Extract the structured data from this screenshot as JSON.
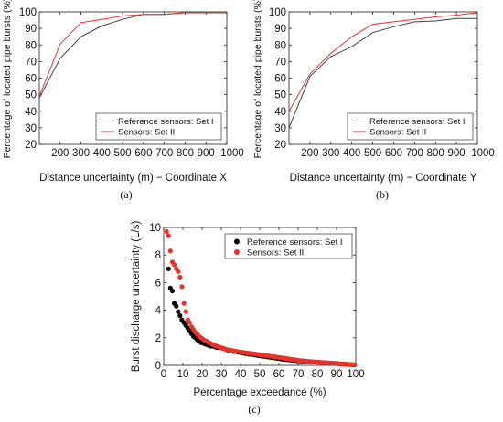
{
  "chart_data": [
    {
      "type": "line",
      "panel_label": "(a)",
      "xlabel": "Distance uncertainty (m) − Coordinate X",
      "ylabel": "Percentage of located pipe bursts (%)",
      "xlim": [
        100,
        1000
      ],
      "ylim": [
        20,
        100
      ],
      "x_ticks": [
        200,
        300,
        400,
        500,
        600,
        700,
        800,
        900,
        1000
      ],
      "x_tick_labels": [
        "200",
        "300",
        "400",
        "500",
        "600",
        "700",
        "800",
        "900",
        "1000"
      ],
      "y_ticks": [
        20,
        30,
        40,
        50,
        60,
        70,
        80,
        90,
        100
      ],
      "y_tick_labels": [
        "20",
        "30",
        "40",
        "50",
        "60",
        "70",
        "80",
        "90",
        "100"
      ],
      "legend_position": "bottom-right",
      "x": [
        100,
        200,
        300,
        400,
        500,
        600,
        700,
        800,
        900,
        1000
      ],
      "series": [
        {
          "name": "Reference sensors: Set I",
          "color": "#404040",
          "values": [
            48,
            72,
            85,
            91.5,
            95.5,
            98.5,
            98.5,
            99.5,
            99.5,
            99.5
          ]
        },
        {
          "name": "Sensors: Set II",
          "color": "#e8312a",
          "values": [
            49,
            80.5,
            93.5,
            95.5,
            97.5,
            98.5,
            98.5,
            99.5,
            99.5,
            100
          ]
        }
      ]
    },
    {
      "type": "line",
      "panel_label": "(b)",
      "xlabel": "Distance uncertainty (m) − Coordinate Y",
      "ylabel": "Percentage of located pipe bursts (%)",
      "xlim": [
        100,
        1000
      ],
      "ylim": [
        20,
        100
      ],
      "x_ticks": [
        200,
        300,
        400,
        500,
        600,
        700,
        800,
        900,
        1000
      ],
      "x_tick_labels": [
        "200",
        "300",
        "400",
        "500",
        "600",
        "700",
        "800",
        "900",
        "1000"
      ],
      "y_ticks": [
        20,
        30,
        40,
        50,
        60,
        70,
        80,
        90,
        100
      ],
      "y_tick_labels": [
        "20",
        "30",
        "40",
        "50",
        "60",
        "70",
        "80",
        "90",
        "100"
      ],
      "legend_position": "bottom-right",
      "x": [
        100,
        200,
        300,
        400,
        500,
        600,
        700,
        800,
        900,
        1000
      ],
      "series": [
        {
          "name": "Reference sensors: Set I",
          "color": "#404040",
          "values": [
            30,
            61,
            73,
            79,
            87.5,
            91,
            94,
            94.5,
            96,
            96
          ]
        },
        {
          "name": "Sensors: Set II",
          "color": "#e8312a",
          "values": [
            40,
            62.5,
            75,
            85,
            92.5,
            94,
            95.5,
            97,
            98,
            99.5
          ]
        }
      ]
    },
    {
      "type": "scatter",
      "panel_label": "(c)",
      "xlabel": "Percentage exceedance (%)",
      "ylabel": "Burst discharge uncertainty (L/s)",
      "xlim": [
        0,
        100
      ],
      "ylim": [
        0,
        10
      ],
      "x_ticks": [
        0,
        10,
        20,
        30,
        40,
        50,
        60,
        70,
        80,
        90,
        100
      ],
      "x_tick_labels": [
        "0",
        "10",
        "20",
        "30",
        "40",
        "50",
        "60",
        "70",
        "80",
        "90",
        "100"
      ],
      "y_ticks": [
        0,
        2,
        4,
        6,
        8,
        10
      ],
      "y_tick_labels": [
        "0",
        "2",
        "4",
        "6",
        "8",
        "10"
      ],
      "legend_position": "top-right",
      "series": [
        {
          "name": "Reference sensors: Set I",
          "color": "#000000",
          "points": [
            [
              2.5,
              7.0
            ],
            [
              3.5,
              5.6
            ],
            [
              4.5,
              5.4
            ],
            [
              5.5,
              4.5
            ],
            [
              6.5,
              4.3
            ],
            [
              7.5,
              3.9
            ],
            [
              8.5,
              3.6
            ],
            [
              9.5,
              3.3
            ],
            [
              10.5,
              3.1
            ],
            [
              11.5,
              2.9
            ],
            [
              12.5,
              2.7
            ],
            [
              13.5,
              2.5
            ],
            [
              14.5,
              2.3
            ],
            [
              15.5,
              2.1
            ],
            [
              16.5,
              2.0
            ],
            [
              17.5,
              1.85
            ],
            [
              18.5,
              1.75
            ],
            [
              19.5,
              1.65
            ],
            [
              20.5,
              1.6
            ],
            [
              21.5,
              1.55
            ],
            [
              22.5,
              1.5
            ],
            [
              23.5,
              1.45
            ],
            [
              24.5,
              1.4
            ],
            [
              25.5,
              1.4
            ],
            [
              26.5,
              1.35
            ],
            [
              27.5,
              1.3
            ],
            [
              28.5,
              1.3
            ],
            [
              29.5,
              1.3
            ],
            [
              30.5,
              1.25
            ],
            [
              31.5,
              1.2
            ],
            [
              32.5,
              1.15
            ],
            [
              33.5,
              1.1
            ],
            [
              34.5,
              1.05
            ],
            [
              35.5,
              1.05
            ],
            [
              36.5,
              1.0
            ],
            [
              37.5,
              1.0
            ],
            [
              38.5,
              0.95
            ],
            [
              39.5,
              0.95
            ],
            [
              40.5,
              0.9
            ],
            [
              41.5,
              0.9
            ],
            [
              42.5,
              0.85
            ],
            [
              43.5,
              0.85
            ],
            [
              44.5,
              0.8
            ],
            [
              45.5,
              0.8
            ],
            [
              46.5,
              0.78
            ],
            [
              47.5,
              0.75
            ],
            [
              48.5,
              0.73
            ],
            [
              49.5,
              0.7
            ],
            [
              50.5,
              0.68
            ],
            [
              51.5,
              0.66
            ],
            [
              52.5,
              0.64
            ],
            [
              53.5,
              0.62
            ],
            [
              54.5,
              0.6
            ],
            [
              55.5,
              0.58
            ],
            [
              56.5,
              0.56
            ],
            [
              57.5,
              0.54
            ],
            [
              58.5,
              0.52
            ],
            [
              59.5,
              0.5
            ],
            [
              60.5,
              0.48
            ],
            [
              61.5,
              0.46
            ],
            [
              62.5,
              0.44
            ],
            [
              63.5,
              0.42
            ],
            [
              64.5,
              0.41
            ],
            [
              65.5,
              0.4
            ],
            [
              66.5,
              0.38
            ],
            [
              67.5,
              0.37
            ],
            [
              68.5,
              0.35
            ],
            [
              69.5,
              0.34
            ],
            [
              70.5,
              0.33
            ],
            [
              71.5,
              0.31
            ],
            [
              72.5,
              0.3
            ],
            [
              73.5,
              0.29
            ],
            [
              74.5,
              0.28
            ],
            [
              75.5,
              0.27
            ],
            [
              76.5,
              0.26
            ],
            [
              77.5,
              0.25
            ],
            [
              78.5,
              0.24
            ],
            [
              79.5,
              0.23
            ],
            [
              80.5,
              0.22
            ],
            [
              81.5,
              0.21
            ],
            [
              82.5,
              0.2
            ],
            [
              83.5,
              0.19
            ],
            [
              84.5,
              0.18
            ],
            [
              85.5,
              0.17
            ],
            [
              86.5,
              0.16
            ],
            [
              87.5,
              0.15
            ],
            [
              88.5,
              0.14
            ],
            [
              89.5,
              0.13
            ],
            [
              90.5,
              0.12
            ],
            [
              91.5,
              0.11
            ],
            [
              92.5,
              0.1
            ],
            [
              93.5,
              0.09
            ],
            [
              94.5,
              0.08
            ],
            [
              95.5,
              0.07
            ],
            [
              96.5,
              0.06
            ],
            [
              97.5,
              0.05
            ],
            [
              98.5,
              0.04
            ],
            [
              99.5,
              0.03
            ]
          ]
        },
        {
          "name": "Sensors: Set II",
          "color": "#e8312a",
          "points": [
            [
              1.5,
              9.7
            ],
            [
              2.5,
              9.4
            ],
            [
              3.5,
              8.3
            ],
            [
              4.5,
              7.5
            ],
            [
              5.5,
              7.3
            ],
            [
              6.5,
              7.0
            ],
            [
              7.5,
              6.8
            ],
            [
              8.5,
              6.4
            ],
            [
              9.5,
              5.7
            ],
            [
              10.5,
              4.5
            ],
            [
              11.5,
              3.9
            ],
            [
              12.5,
              3.3
            ],
            [
              13.5,
              3.1
            ],
            [
              14.5,
              2.8
            ],
            [
              15.5,
              2.6
            ],
            [
              16.5,
              2.4
            ],
            [
              17.5,
              2.25
            ],
            [
              18.5,
              2.1
            ],
            [
              19.5,
              2.0
            ],
            [
              20.5,
              1.9
            ],
            [
              21.5,
              1.8
            ],
            [
              22.5,
              1.75
            ],
            [
              23.5,
              1.65
            ],
            [
              24.5,
              1.6
            ],
            [
              25.5,
              1.5
            ],
            [
              26.5,
              1.45
            ],
            [
              27.5,
              1.4
            ],
            [
              28.5,
              1.35
            ],
            [
              29.5,
              1.3
            ],
            [
              30.5,
              1.25
            ],
            [
              31.5,
              1.2
            ],
            [
              32.5,
              1.15
            ],
            [
              33.5,
              1.12
            ],
            [
              34.5,
              1.1
            ],
            [
              35.5,
              1.08
            ],
            [
              36.5,
              1.05
            ],
            [
              37.5,
              1.02
            ],
            [
              38.5,
              1.0
            ],
            [
              39.5,
              0.98
            ],
            [
              40.5,
              0.96
            ],
            [
              41.5,
              0.94
            ],
            [
              42.5,
              0.92
            ],
            [
              43.5,
              0.9
            ],
            [
              44.5,
              0.88
            ],
            [
              45.5,
              0.86
            ],
            [
              46.5,
              0.84
            ],
            [
              47.5,
              0.82
            ],
            [
              48.5,
              0.8
            ],
            [
              49.5,
              0.78
            ],
            [
              50.5,
              0.76
            ],
            [
              51.5,
              0.74
            ],
            [
              52.5,
              0.72
            ],
            [
              53.5,
              0.7
            ],
            [
              54.5,
              0.68
            ],
            [
              55.5,
              0.66
            ],
            [
              56.5,
              0.64
            ],
            [
              57.5,
              0.62
            ],
            [
              58.5,
              0.6
            ],
            [
              59.5,
              0.58
            ],
            [
              60.5,
              0.56
            ],
            [
              61.5,
              0.54
            ],
            [
              62.5,
              0.52
            ],
            [
              63.5,
              0.5
            ],
            [
              64.5,
              0.48
            ],
            [
              65.5,
              0.46
            ],
            [
              66.5,
              0.44
            ],
            [
              67.5,
              0.42
            ],
            [
              68.5,
              0.4
            ],
            [
              69.5,
              0.38
            ],
            [
              70.5,
              0.36
            ],
            [
              71.5,
              0.34
            ],
            [
              72.5,
              0.33
            ],
            [
              73.5,
              0.31
            ],
            [
              74.5,
              0.3
            ],
            [
              75.5,
              0.28
            ],
            [
              76.5,
              0.27
            ],
            [
              77.5,
              0.26
            ],
            [
              78.5,
              0.25
            ],
            [
              79.5,
              0.24
            ],
            [
              80.5,
              0.23
            ],
            [
              81.5,
              0.22
            ],
            [
              82.5,
              0.21
            ],
            [
              83.5,
              0.2
            ],
            [
              84.5,
              0.19
            ],
            [
              85.5,
              0.18
            ],
            [
              86.5,
              0.17
            ],
            [
              87.5,
              0.16
            ],
            [
              88.5,
              0.15
            ],
            [
              89.5,
              0.14
            ],
            [
              90.5,
              0.13
            ],
            [
              91.5,
              0.12
            ],
            [
              92.5,
              0.11
            ],
            [
              93.5,
              0.1
            ],
            [
              94.5,
              0.09
            ],
            [
              95.5,
              0.08
            ],
            [
              96.5,
              0.07
            ],
            [
              97.5,
              0.06
            ],
            [
              98.5,
              0.05
            ],
            [
              99.5,
              0.04
            ]
          ]
        }
      ]
    }
  ]
}
